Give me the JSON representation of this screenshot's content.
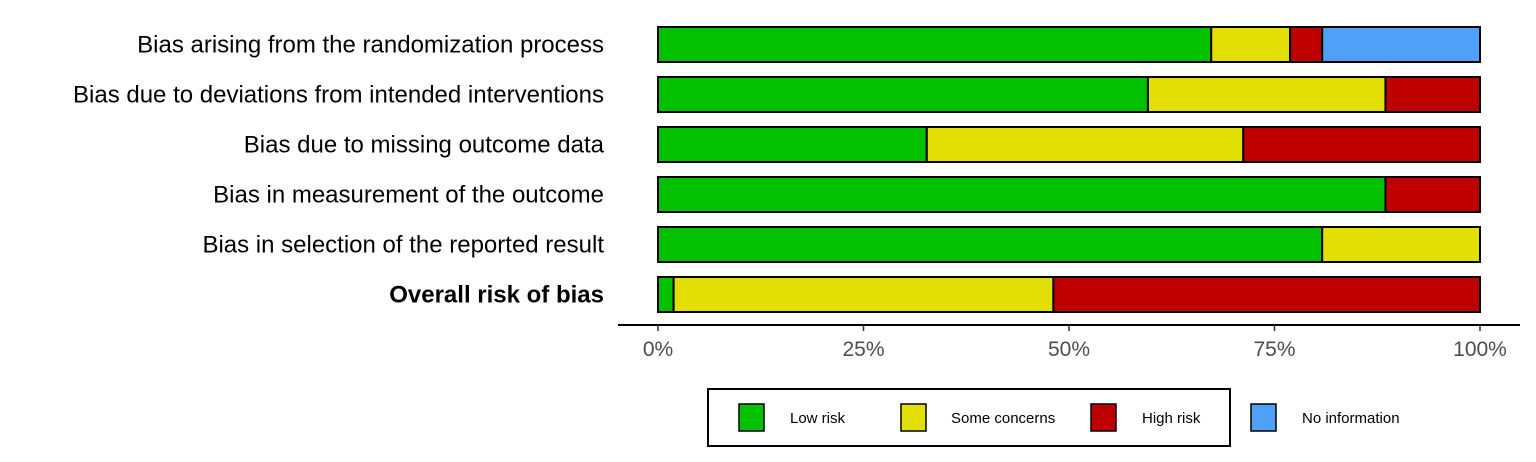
{
  "chart_data": {
    "type": "bar",
    "orientation": "horizontal",
    "stacked": true,
    "categories": [
      "Bias arising from the randomization process",
      "Bias due to deviations from intended interventions",
      "Bias due to missing outcome data",
      "Bias in measurement of the outcome",
      "Bias in selection of the reported result",
      "Overall risk of bias"
    ],
    "bold_categories": [
      "Overall risk of bias"
    ],
    "series": [
      {
        "name": "Low risk",
        "color": "#02C100",
        "values": [
          67.3,
          59.6,
          32.7,
          88.5,
          80.8,
          1.9
        ]
      },
      {
        "name": "Some concerns",
        "color": "#E2DF07",
        "values": [
          9.6,
          28.9,
          38.5,
          0.0,
          19.2,
          46.2
        ]
      },
      {
        "name": "High risk",
        "color": "#BF0000",
        "values": [
          3.9,
          11.5,
          28.8,
          11.5,
          0.0,
          51.9
        ]
      },
      {
        "name": "No information",
        "color": "#4EA1F7",
        "values": [
          19.2,
          0.0,
          0.0,
          0.0,
          0.0,
          0.0
        ]
      }
    ],
    "xlim": [
      0,
      100
    ],
    "x_ticks": [
      0,
      25,
      50,
      75,
      100
    ],
    "x_tick_labels": [
      "0%",
      "25%",
      "50%",
      "75%",
      "100%"
    ],
    "grid": false,
    "legend_position": "bottom"
  }
}
